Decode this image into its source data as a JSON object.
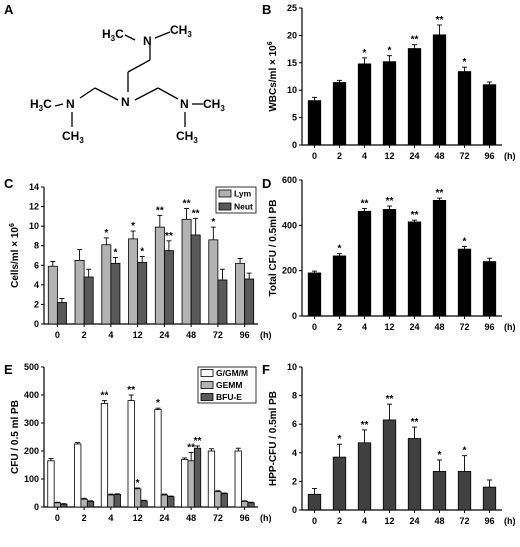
{
  "panel_labels": [
    "A",
    "B",
    "C",
    "D",
    "E",
    "F"
  ],
  "molecule": {
    "top_group": [
      "H",
      "3",
      "C",
      "N",
      "CH",
      "3"
    ],
    "mid_n": "N",
    "left_group": [
      "H",
      "3",
      "C",
      "N"
    ],
    "left_ch3": [
      "CH",
      "3"
    ],
    "right_group": [
      "N",
      "CH",
      "3"
    ],
    "right_ch3": [
      "CH",
      "3"
    ]
  },
  "x_unit": "(h)",
  "chart_data": [
    {
      "panel": "B",
      "type": "bar",
      "ylabel_main": "WBCs/ml × 10",
      "ylabel_sup": "6",
      "categories": [
        "0",
        "2",
        "4",
        "12",
        "24",
        "48",
        "72",
        "96"
      ],
      "ylim": [
        0,
        25
      ],
      "yticks": [
        0,
        5,
        10,
        15,
        20,
        25
      ],
      "series": [
        {
          "values": [
            8.1,
            11.4,
            14.8,
            15.2,
            17.6,
            20.1,
            13.4,
            11.0
          ],
          "errors": [
            0.6,
            0.4,
            1.1,
            1.1,
            0.7,
            1.8,
            0.8,
            0.5
          ],
          "color": "#000000"
        }
      ],
      "stars": [
        "",
        "",
        "*",
        "*",
        "**",
        "**",
        "*",
        ""
      ]
    },
    {
      "panel": "C",
      "type": "bar",
      "ylabel_main": "Cells/ml × 10",
      "ylabel_sup": "6",
      "categories": [
        "0",
        "2",
        "4",
        "12",
        "24",
        "48",
        "72",
        "96"
      ],
      "ylim": [
        0,
        14
      ],
      "yticks": [
        0,
        2,
        4,
        6,
        8,
        10,
        12,
        14
      ],
      "series": [
        {
          "name": "Lym",
          "values": [
            5.9,
            6.5,
            8.1,
            8.7,
            9.9,
            10.7,
            8.6,
            6.2
          ],
          "errors": [
            0.5,
            1.1,
            0.7,
            0.8,
            1.2,
            1.1,
            1.3,
            0.5
          ],
          "color": "#b3b3b3",
          "stars": [
            "",
            "",
            "*",
            "*",
            "**",
            "**",
            "*",
            ""
          ]
        },
        {
          "name": "Neut",
          "values": [
            2.2,
            4.8,
            6.2,
            6.3,
            7.5,
            9.1,
            4.5,
            4.6
          ],
          "errors": [
            0.4,
            0.8,
            0.6,
            0.6,
            1.0,
            1.7,
            1.1,
            0.6
          ],
          "color": "#595959",
          "stars": [
            "",
            "",
            "*",
            "*",
            "**",
            "**",
            "",
            ""
          ]
        }
      ],
      "legend": "top-right"
    },
    {
      "panel": "D",
      "type": "bar",
      "ylabel_main": "Total CFU / 0.5ml PB",
      "categories": [
        "0",
        "2",
        "4",
        "12",
        "24",
        "48",
        "72",
        "96"
      ],
      "ylim": [
        0,
        600
      ],
      "yticks": [
        0,
        200,
        400,
        600
      ],
      "series": [
        {
          "values": [
            190,
            265,
            462,
            470,
            415,
            510,
            295,
            240
          ],
          "errors": [
            8,
            10,
            12,
            15,
            8,
            10,
            12,
            15
          ],
          "color": "#000000"
        }
      ],
      "stars": [
        "",
        "*",
        "**",
        "**",
        "**",
        "**",
        "*",
        ""
      ]
    },
    {
      "panel": "E",
      "type": "bar",
      "ylabel_main": "CFU / 0.5 ml PB",
      "categories": [
        "0",
        "2",
        "4",
        "12",
        "24",
        "48",
        "72",
        "96"
      ],
      "ylim": [
        0,
        500
      ],
      "yticks": [
        0,
        100,
        200,
        300,
        400,
        500
      ],
      "series": [
        {
          "name": "G/GM/M",
          "values": [
            165,
            225,
            370,
            380,
            348,
            170,
            200,
            200
          ],
          "errors": [
            8,
            5,
            10,
            20,
            5,
            5,
            8,
            10
          ],
          "color": "#ffffff",
          "stars": [
            "",
            "",
            "**",
            "**",
            "*",
            "",
            "",
            ""
          ]
        },
        {
          "name": "GEMM",
          "values": [
            15,
            28,
            43,
            65,
            43,
            165,
            55,
            20
          ],
          "errors": [
            2,
            3,
            3,
            3,
            3,
            30,
            3,
            2
          ],
          "color": "#b3b3b3",
          "stars": [
            "",
            "",
            "",
            "*",
            "",
            "**",
            "",
            ""
          ]
        },
        {
          "name": "BFU-E",
          "values": [
            10,
            20,
            45,
            22,
            37,
            210,
            48,
            15
          ],
          "errors": [
            2,
            2,
            2,
            2,
            2,
            8,
            2,
            2
          ],
          "color": "#595959",
          "stars": [
            "",
            "",
            "",
            "",
            "",
            "**",
            "",
            ""
          ]
        }
      ],
      "legend": "top-right"
    },
    {
      "panel": "F",
      "type": "bar",
      "ylabel_main": "HPP-CFU / 0.5ml PB",
      "categories": [
        "0",
        "2",
        "4",
        "12",
        "24",
        "48",
        "72",
        "96"
      ],
      "ylim": [
        0,
        10
      ],
      "yticks": [
        0,
        2,
        4,
        6,
        8,
        10
      ],
      "series": [
        {
          "values": [
            1.1,
            3.7,
            4.7,
            6.3,
            5.0,
            2.7,
            2.7,
            1.6
          ],
          "errors": [
            0.4,
            0.9,
            0.9,
            1.1,
            0.8,
            0.8,
            1.1,
            0.5
          ],
          "color": "#404040"
        }
      ],
      "stars": [
        "",
        "*",
        "**",
        "**",
        "**",
        "*",
        "*",
        ""
      ]
    }
  ]
}
